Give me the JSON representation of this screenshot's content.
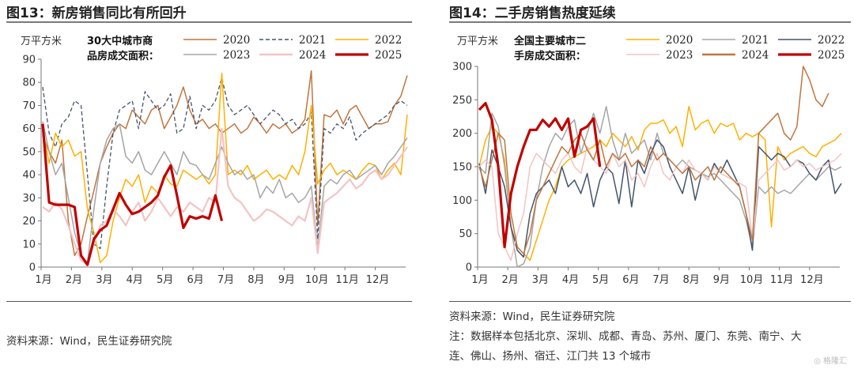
{
  "left": {
    "title": "图13：新房销售同比有所回升",
    "source": "资料来源：Wind，民生证券研究院"
  },
  "right": {
    "title": "图14：二手房销售热度延续",
    "source": "资料来源：Wind，民生证券研究院",
    "note_lines": [
      "注：数据样本包括北京、深圳、成都、青岛、苏州、厦门、东莞、南宁、大",
      "连、佛山、扬州、宿迁、江门共 13 个城市"
    ]
  },
  "watermark": "格隆汇",
  "colors": {
    "s2020": "#c0753f",
    "s2021": "#44546a",
    "s2022": "#ffb000",
    "s2023": "#a5a5a5",
    "s2024": "#f2c4c4",
    "s2025": "#c00000"
  },
  "chart_data": [
    {
      "type": "line",
      "title": "",
      "ylabel": "万平方米",
      "annotation": [
        "30大中城市商",
        "品房成交面积："
      ],
      "ylim": [
        0,
        90
      ],
      "yticks": [
        "0",
        "10",
        "20",
        "30",
        "40",
        "50",
        "60",
        "70",
        "80",
        "90"
      ],
      "xticks": [
        "1月",
        "2月",
        "3月",
        "4月",
        "5月",
        "6月",
        "7月",
        "8月",
        "9月",
        "10月",
        "11月",
        "12月"
      ],
      "legend_position": "top",
      "series": [
        {
          "name": "2020",
          "color": "#c0753f",
          "style": "solid",
          "width": 1.5,
          "values": [
            57,
            50,
            45,
            55,
            20,
            5,
            10,
            22,
            33,
            45,
            52,
            58,
            62,
            60,
            68,
            65,
            62,
            68,
            70,
            60,
            65,
            70,
            78,
            68,
            62,
            64,
            60,
            62,
            58,
            60,
            62,
            58,
            60,
            65,
            62,
            58,
            62,
            60,
            62,
            58,
            60,
            64,
            85,
            18,
            66,
            65,
            68,
            62,
            68,
            70,
            65,
            60,
            62,
            62,
            63,
            70,
            74,
            83
          ]
        },
        {
          "name": "2021",
          "color": "#44546a",
          "style": "dashed",
          "width": 1.3,
          "values": [
            78,
            58,
            52,
            62,
            65,
            72,
            70,
            40,
            10,
            8,
            35,
            58,
            68,
            70,
            72,
            60,
            76,
            72,
            68,
            70,
            75,
            58,
            60,
            74,
            60,
            70,
            68,
            72,
            82,
            70,
            66,
            68,
            70,
            66,
            62,
            65,
            68,
            66,
            62,
            64,
            60,
            62,
            67,
            12,
            60,
            58,
            62,
            60,
            65,
            55,
            58,
            60,
            62,
            64,
            66,
            70,
            72,
            70
          ]
        },
        {
          "name": "2022",
          "color": "#ffb000",
          "style": "solid",
          "width": 1.5,
          "values": [
            60,
            45,
            58,
            52,
            55,
            48,
            50,
            25,
            15,
            2,
            5,
            20,
            30,
            38,
            35,
            40,
            28,
            35,
            32,
            40,
            36,
            35,
            42,
            40,
            38,
            40,
            36,
            40,
            84,
            40,
            42,
            40,
            44,
            38,
            40,
            42,
            38,
            40,
            38,
            44,
            40,
            50,
            70,
            36,
            42,
            45,
            40,
            42,
            40,
            38,
            42,
            45,
            44,
            38,
            42,
            45,
            40,
            66
          ]
        },
        {
          "name": "2023",
          "color": "#a5a5a5",
          "style": "solid",
          "width": 1.5,
          "values": [
            63,
            50,
            40,
            45,
            30,
            15,
            5,
            2,
            25,
            45,
            55,
            60,
            62,
            48,
            45,
            50,
            42,
            40,
            45,
            50,
            45,
            40,
            50,
            45,
            44,
            40,
            38,
            45,
            52,
            45,
            40,
            42,
            38,
            40,
            30,
            35,
            32,
            38,
            30,
            32,
            28,
            30,
            35,
            8,
            35,
            38,
            36,
            40,
            42,
            38,
            40,
            42,
            44,
            40,
            45,
            48,
            52,
            56
          ]
        },
        {
          "name": "2024",
          "color": "#f2c4c4",
          "style": "solid",
          "width": 2.2,
          "values": [
            26,
            24,
            28,
            25,
            18,
            10,
            3,
            1,
            10,
            18,
            20,
            25,
            22,
            18,
            24,
            28,
            20,
            24,
            30,
            26,
            22,
            26,
            24,
            28,
            26,
            24,
            30,
            28,
            60,
            35,
            30,
            28,
            24,
            20,
            22,
            25,
            24,
            22,
            20,
            18,
            22,
            20,
            30,
            6,
            28,
            30,
            32,
            35,
            38,
            34,
            36,
            40,
            42,
            38,
            40,
            44,
            48,
            52
          ]
        },
        {
          "name": "2025",
          "color": "#c00000",
          "style": "solid",
          "width": 3.2,
          "values": [
            62,
            28,
            27,
            27,
            27,
            26,
            5,
            1,
            12,
            16,
            18,
            25,
            32,
            27,
            23,
            24,
            26,
            28,
            31,
            39,
            44,
            31,
            17,
            22,
            21,
            22,
            21,
            31,
            20
          ]
        }
      ]
    },
    {
      "type": "line",
      "title": "",
      "ylabel": "万平方米",
      "annotation": [
        "全国主要城市二",
        "手房成交面积："
      ],
      "ylim": [
        0,
        300
      ],
      "yticks": [
        "0",
        "50",
        "100",
        "150",
        "200",
        "250",
        "300"
      ],
      "xticks": [
        "1月",
        "2月",
        "3月",
        "4月",
        "5月",
        "6月",
        "7月",
        "8月",
        "9月",
        "10月",
        "11月",
        "12月"
      ],
      "legend_position": "top",
      "series": [
        {
          "name": "2020",
          "color": "#ffb000",
          "style": "solid",
          "width": 1.5,
          "values": [
            150,
            190,
            210,
            200,
            160,
            60,
            30,
            20,
            10,
            40,
            70,
            100,
            120,
            150,
            160,
            165,
            170,
            175,
            180,
            190,
            180,
            200,
            190,
            180,
            195,
            175,
            205,
            215,
            215,
            220,
            200,
            210,
            180,
            240,
            205,
            215,
            220,
            200,
            215,
            210,
            215,
            190,
            200,
            195,
            200,
            190,
            60,
            180,
            160,
            170,
            175,
            180,
            170,
            165,
            180,
            185,
            190,
            200
          ]
        },
        {
          "name": "2021",
          "color": "#a5a5a5",
          "style": "solid",
          "width": 1.5,
          "values": [
            150,
            140,
            230,
            210,
            150,
            60,
            0,
            5,
            30,
            100,
            150,
            180,
            200,
            190,
            210,
            220,
            170,
            200,
            230,
            200,
            240,
            190,
            160,
            200,
            170,
            180,
            190,
            160,
            200,
            170,
            160,
            150,
            160,
            150,
            145,
            140,
            135,
            140,
            130,
            120,
            110,
            100,
            70,
            30,
            120,
            110,
            120,
            110,
            115,
            110,
            120,
            130,
            140,
            130,
            140,
            150,
            145,
            150
          ]
        },
        {
          "name": "2022",
          "color": "#44546a",
          "style": "solid",
          "width": 1.5,
          "values": [
            155,
            110,
            175,
            150,
            120,
            60,
            25,
            15,
            80,
            110,
            120,
            130,
            110,
            150,
            120,
            130,
            110,
            140,
            90,
            130,
            150,
            140,
            95,
            160,
            90,
            160,
            140,
            170,
            190,
            180,
            150,
            130,
            110,
            150,
            100,
            140,
            130,
            155,
            140,
            160,
            140,
            120,
            80,
            25,
            180,
            170,
            160,
            170,
            165,
            150,
            160,
            155,
            140,
            130,
            150,
            160,
            110,
            125
          ]
        },
        {
          "name": "2023",
          "color": "#f2c4c4",
          "style": "solid",
          "width": 1.5,
          "values": [
            150,
            160,
            150,
            50,
            30,
            10,
            50,
            80,
            150,
            170,
            160,
            150,
            140,
            160,
            170,
            150,
            140,
            180,
            160,
            150,
            140,
            170,
            150,
            160,
            130,
            140,
            120,
            150,
            170,
            140,
            130,
            150,
            140,
            160,
            145,
            140,
            130,
            150,
            140,
            135,
            130,
            125,
            120,
            40,
            130,
            140,
            150,
            160,
            145,
            150,
            160,
            150,
            155,
            145,
            150,
            155,
            160,
            170
          ]
        },
        {
          "name": "2024",
          "color": "#c0753f",
          "style": "solid",
          "width": 1.5,
          "values": [
            150,
            120,
            160,
            200,
            190,
            80,
            30,
            20,
            50,
            100,
            120,
            140,
            160,
            180,
            170,
            190,
            200,
            175,
            160,
            190,
            150,
            170,
            160,
            170,
            150,
            160,
            150,
            180,
            160,
            170,
            160,
            150,
            140,
            150,
            130,
            140,
            150,
            130,
            150,
            140,
            130,
            120,
            80,
            40,
            200,
            210,
            220,
            230,
            200,
            190,
            210,
            300,
            280,
            250,
            240,
            260
          ]
        },
        {
          "name": "2025",
          "color": "#c00000",
          "style": "solid",
          "width": 3.2,
          "values": [
            235,
            245,
            220,
            150,
            30,
            110,
            150,
            180,
            205,
            205,
            220,
            210,
            222,
            205,
            222,
            165,
            205,
            210,
            222,
            150
          ]
        }
      ]
    }
  ]
}
